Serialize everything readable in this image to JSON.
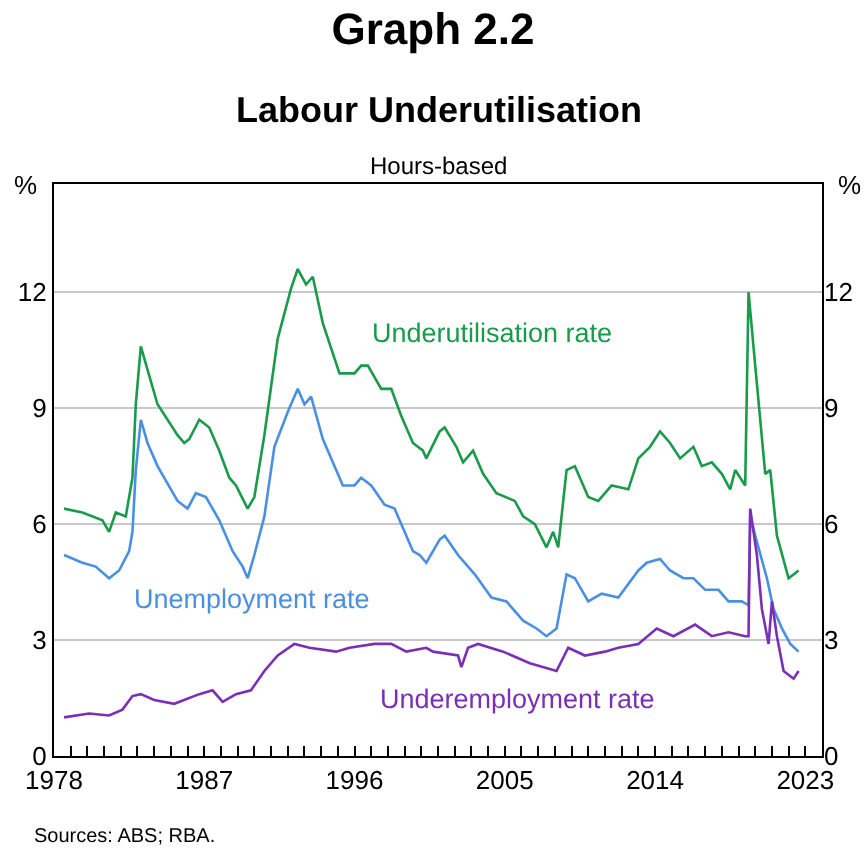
{
  "chart_data": {
    "type": "line",
    "title": "Graph 2.2",
    "subtitle": "Labour Underutilisation",
    "annotations": [
      "Hours-based",
      "Sources: ABS; RBA."
    ],
    "ylabel": "%",
    "y2label": "%",
    "xlim": [
      1978,
      2024
    ],
    "xticks": [
      1978,
      1987,
      1996,
      2005,
      2014,
      2023,
      {
        "value": 1979,
        "label": null
      },
      {
        "value": 1980,
        "label": null
      },
      {
        "value": 1981,
        "label": null
      },
      {
        "value": 1982,
        "label": null
      },
      {
        "value": 1983,
        "label": null
      },
      {
        "value": 1984,
        "label": null
      },
      {
        "value": 1985,
        "label": null
      },
      {
        "value": 1986,
        "label": null
      },
      {
        "value": 1988,
        "label": null
      },
      {
        "value": 1989,
        "label": null
      },
      {
        "value": 1990,
        "label": null
      },
      {
        "value": 1991,
        "label": null
      },
      {
        "value": 1992,
        "label": null
      },
      {
        "value": 1993,
        "label": null
      },
      {
        "value": 1994,
        "label": null
      },
      {
        "value": 1995,
        "label": null
      },
      {
        "value": 1997,
        "label": null
      },
      {
        "value": 1998,
        "label": null
      },
      {
        "value": 1999,
        "label": null
      },
      {
        "value": 2000,
        "label": null
      },
      {
        "value": 2001,
        "label": null
      },
      {
        "value": 2002,
        "label": null
      },
      {
        "value": 2003,
        "label": null
      },
      {
        "value": 2004,
        "label": null
      },
      {
        "value": 2006,
        "label": null
      },
      {
        "value": 2007,
        "label": null
      },
      {
        "value": 2008,
        "label": null
      },
      {
        "value": 2009,
        "label": null
      },
      {
        "value": 2010,
        "label": null
      },
      {
        "value": 2011,
        "label": null
      },
      {
        "value": 2012,
        "label": null
      },
      {
        "value": 2013,
        "label": null
      },
      {
        "value": 2015,
        "label": null
      },
      {
        "value": 2016,
        "label": null
      },
      {
        "value": 2017,
        "label": null
      },
      {
        "value": 2018,
        "label": null
      },
      {
        "value": 2019,
        "label": null
      },
      {
        "value": 2020,
        "label": null
      },
      {
        "value": 2021,
        "label": null
      },
      {
        "value": 2022,
        "label": null
      }
    ],
    "ylim": [
      0,
      14.8
    ],
    "yticks": [
      0,
      3,
      6,
      9,
      12
    ],
    "y2lim": [
      0,
      14.8
    ],
    "y2ticks": [
      0,
      3,
      6,
      9,
      12
    ],
    "grid": "y",
    "series": [
      {
        "name": "Underutilisation rate",
        "color": "#1a9a4a",
        "x": [
          1978.6,
          1979.7,
          1980.9,
          1981.3,
          1981.7,
          1982.3,
          1982.7,
          1982.9,
          1983.2,
          1983.6,
          1984.2,
          1985.4,
          1985.8,
          1986.1,
          1986.7,
          1987.3,
          1987.9,
          1988.5,
          1988.9,
          1989.6,
          1990.0,
          1990.6,
          1991.4,
          1992.2,
          1992.6,
          1993.1,
          1993.5,
          1994.1,
          1995.1,
          1996.0,
          1996.4,
          1996.8,
          1997.6,
          1998.2,
          1998.8,
          1999.5,
          2000.1,
          2000.3,
          2001.1,
          2001.4,
          2002.1,
          2002.5,
          2003.1,
          2003.7,
          2004.5,
          2005.6,
          2006.1,
          2006.8,
          2007.5,
          2007.9,
          2008.2,
          2008.7,
          2009.2,
          2010.0,
          2010.6,
          2011.4,
          2012.4,
          2013.0,
          2013.7,
          2014.3,
          2014.9,
          2015.5,
          2016.3,
          2016.8,
          2017.4,
          2018.0,
          2018.5,
          2018.8,
          2019.4,
          2019.6,
          2020.0,
          2020.6,
          2020.9,
          2021.3,
          2022.0,
          2022.6
        ],
        "values": [
          6.4,
          6.3,
          6.1,
          5.8,
          6.3,
          6.2,
          7.2,
          9.1,
          10.6,
          10.0,
          9.1,
          8.3,
          8.1,
          8.2,
          8.7,
          8.5,
          7.9,
          7.2,
          7.0,
          6.4,
          6.7,
          8.3,
          10.8,
          12.1,
          12.6,
          12.2,
          12.4,
          11.2,
          9.9,
          9.9,
          10.1,
          10.1,
          9.5,
          9.5,
          8.8,
          8.1,
          7.9,
          7.7,
          8.4,
          8.5,
          8.0,
          7.6,
          7.9,
          7.3,
          6.8,
          6.6,
          6.2,
          6.0,
          5.4,
          5.8,
          5.4,
          7.4,
          7.5,
          6.7,
          6.6,
          7.0,
          6.9,
          7.7,
          8.0,
          8.4,
          8.1,
          7.7,
          8.0,
          7.5,
          7.6,
          7.3,
          6.9,
          7.4,
          7.0,
          12.0,
          10.1,
          7.3,
          7.4,
          5.7,
          4.6,
          4.8
        ]
      },
      {
        "name": "Unemployment rate",
        "color": "#4a90e2",
        "x": [
          1978.6,
          1979.7,
          1980.5,
          1981.3,
          1981.9,
          1982.5,
          1982.7,
          1982.9,
          1983.2,
          1983.6,
          1984.2,
          1985.4,
          1986.0,
          1986.5,
          1987.1,
          1987.9,
          1988.7,
          1989.3,
          1989.6,
          1990.0,
          1990.6,
          1991.2,
          1992.0,
          1992.6,
          1993.0,
          1993.4,
          1994.1,
          1995.3,
          1996.0,
          1996.4,
          1997.0,
          1997.8,
          1998.4,
          1999.0,
          1999.5,
          1999.9,
          2000.3,
          2001.1,
          2001.4,
          2002.2,
          2003.2,
          2004.2,
          2005.1,
          2006.1,
          2006.9,
          2007.5,
          2008.1,
          2008.7,
          2009.2,
          2010.0,
          2010.8,
          2011.8,
          2013.0,
          2013.5,
          2014.3,
          2014.9,
          2015.7,
          2016.3,
          2017.0,
          2017.8,
          2018.4,
          2019.2,
          2019.6,
          2019.7,
          2020.0,
          2020.7,
          2021.1,
          2021.6,
          2022.1,
          2022.6
        ],
        "values": [
          5.2,
          5.0,
          4.9,
          4.6,
          4.8,
          5.3,
          5.8,
          7.4,
          8.7,
          8.1,
          7.5,
          6.6,
          6.4,
          6.8,
          6.7,
          6.1,
          5.3,
          4.9,
          4.6,
          5.2,
          6.2,
          8.0,
          8.9,
          9.5,
          9.1,
          9.3,
          8.2,
          7.0,
          7.0,
          7.2,
          7.0,
          6.5,
          6.4,
          5.8,
          5.3,
          5.2,
          5.0,
          5.6,
          5.7,
          5.2,
          4.7,
          4.1,
          4.0,
          3.5,
          3.3,
          3.1,
          3.3,
          4.7,
          4.6,
          4.0,
          4.2,
          4.1,
          4.8,
          5.0,
          5.1,
          4.8,
          4.6,
          4.6,
          4.3,
          4.3,
          4.0,
          4.0,
          3.9,
          6.2,
          5.7,
          4.6,
          3.8,
          3.3,
          2.9,
          2.7
        ]
      },
      {
        "name": "Underemployment rate",
        "color": "#7b2fb5",
        "x": [
          1978.6,
          1980.1,
          1981.3,
          1982.1,
          1982.7,
          1983.2,
          1984.0,
          1985.2,
          1986.7,
          1987.5,
          1988.1,
          1988.9,
          1989.8,
          1990.6,
          1991.4,
          1992.4,
          1993.3,
          1994.9,
          1995.7,
          1997.2,
          1998.2,
          1999.1,
          2000.3,
          2000.7,
          2002.2,
          2002.4,
          2002.8,
          2003.4,
          2004.9,
          2006.5,
          2008.1,
          2008.8,
          2009.8,
          2011.0,
          2011.8,
          2013.0,
          2014.1,
          2015.1,
          2016.4,
          2017.4,
          2018.4,
          2019.4,
          2019.6,
          2019.7,
          2020.1,
          2020.4,
          2020.8,
          2021.0,
          2021.3,
          2021.7,
          2022.3,
          2022.6
        ],
        "values": [
          1.0,
          1.1,
          1.05,
          1.2,
          1.55,
          1.6,
          1.45,
          1.35,
          1.6,
          1.7,
          1.4,
          1.6,
          1.7,
          2.2,
          2.6,
          2.9,
          2.8,
          2.7,
          2.8,
          2.9,
          2.9,
          2.7,
          2.8,
          2.7,
          2.6,
          2.3,
          2.8,
          2.9,
          2.7,
          2.4,
          2.2,
          2.8,
          2.6,
          2.7,
          2.8,
          2.9,
          3.3,
          3.1,
          3.4,
          3.1,
          3.2,
          3.1,
          3.1,
          6.4,
          5.2,
          3.8,
          2.9,
          4.0,
          3.1,
          2.2,
          2.0,
          2.2
        ]
      }
    ]
  }
}
